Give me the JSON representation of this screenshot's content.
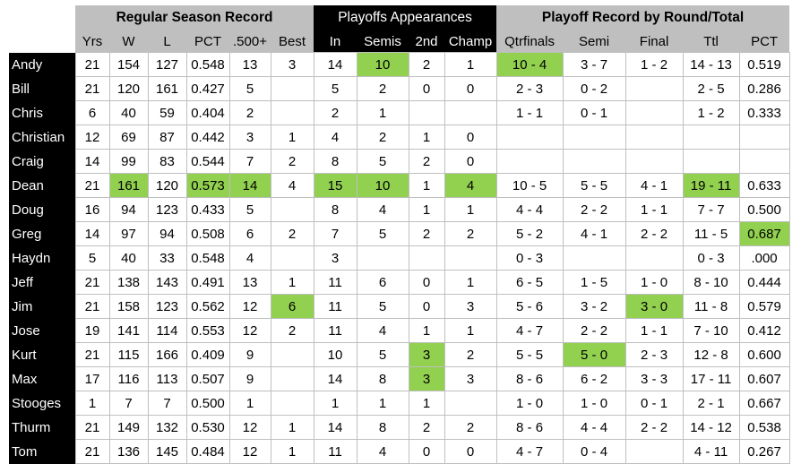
{
  "groups": [
    {
      "label": "Regular Season Record"
    },
    {
      "label": "Playoffs Appearances"
    },
    {
      "label": "Playoff Record by Round/Total"
    }
  ],
  "columns": {
    "season": [
      "Yrs",
      "W",
      "L",
      "PCT",
      ".500+",
      "Best"
    ],
    "appearances": [
      "In",
      "Semis",
      "2nd",
      "Champ"
    ],
    "rounds": [
      "Qtrfinals",
      "Semi",
      "Final",
      "Ttl",
      "PCT"
    ]
  },
  "highlight_color": "#92d050",
  "rows": [
    {
      "name": "Andy",
      "cells": [
        "21",
        "154",
        "127",
        "0.548",
        "13",
        "3",
        "14",
        "10",
        "2",
        "1",
        "10 - 4",
        "3 - 7",
        "1 - 2",
        "14 - 13",
        "0.519"
      ],
      "highlight": [
        7,
        10
      ]
    },
    {
      "name": "Bill",
      "cells": [
        "21",
        "120",
        "161",
        "0.427",
        "5",
        "",
        "5",
        "2",
        "0",
        "0",
        "2 - 3",
        "0 - 2",
        "",
        "2 - 5",
        "0.286"
      ],
      "highlight": []
    },
    {
      "name": "Chris",
      "cells": [
        "6",
        "40",
        "59",
        "0.404",
        "2",
        "",
        "2",
        "1",
        "",
        "",
        "1 - 1",
        "0 - 1",
        "",
        "1 - 2",
        "0.333"
      ],
      "highlight": []
    },
    {
      "name": "Christian",
      "cells": [
        "12",
        "69",
        "87",
        "0.442",
        "3",
        "1",
        "4",
        "2",
        "1",
        "0",
        "",
        "",
        "",
        "",
        ""
      ],
      "highlight": []
    },
    {
      "name": "Craig",
      "cells": [
        "14",
        "99",
        "83",
        "0.544",
        "7",
        "2",
        "8",
        "5",
        "2",
        "0",
        "",
        "",
        "",
        "",
        ""
      ],
      "highlight": []
    },
    {
      "name": "Dean",
      "cells": [
        "21",
        "161",
        "120",
        "0.573",
        "14",
        "4",
        "15",
        "10",
        "1",
        "4",
        "10 - 5",
        "5 - 5",
        "4 - 1",
        "19 - 11",
        "0.633"
      ],
      "highlight": [
        1,
        3,
        4,
        6,
        7,
        9,
        13
      ]
    },
    {
      "name": "Doug",
      "cells": [
        "16",
        "94",
        "123",
        "0.433",
        "5",
        "",
        "8",
        "4",
        "1",
        "1",
        "4 - 4",
        "2 - 2",
        "1 - 1",
        "7 - 7",
        "0.500"
      ],
      "highlight": []
    },
    {
      "name": "Greg",
      "cells": [
        "14",
        "97",
        "94",
        "0.508",
        "6",
        "2",
        "7",
        "5",
        "2",
        "2",
        "5 - 2",
        "4 - 1",
        "2 - 2",
        "11 - 5",
        "0.687"
      ],
      "highlight": [
        14
      ]
    },
    {
      "name": "Haydn",
      "cells": [
        "5",
        "40",
        "33",
        "0.548",
        "4",
        "",
        "3",
        "",
        "",
        "",
        "0 - 3",
        "",
        "",
        "0 - 3",
        ".000"
      ],
      "highlight": []
    },
    {
      "name": "Jeff",
      "cells": [
        "21",
        "138",
        "143",
        "0.491",
        "13",
        "1",
        "11",
        "6",
        "0",
        "1",
        "6 - 5",
        "1 - 5",
        "1 - 0",
        "8 - 10",
        "0.444"
      ],
      "highlight": []
    },
    {
      "name": "Jim",
      "cells": [
        "21",
        "158",
        "123",
        "0.562",
        "12",
        "6",
        "11",
        "5",
        "0",
        "3",
        "5 - 6",
        "3 - 2",
        "3 - 0",
        "11 - 8",
        "0.579"
      ],
      "highlight": [
        5,
        12
      ]
    },
    {
      "name": "Jose",
      "cells": [
        "19",
        "141",
        "114",
        "0.553",
        "12",
        "2",
        "11",
        "4",
        "1",
        "1",
        "4 - 7",
        "2 - 2",
        "1 - 1",
        "7 - 10",
        "0.412"
      ],
      "highlight": []
    },
    {
      "name": "Kurt",
      "cells": [
        "21",
        "115",
        "166",
        "0.409",
        "9",
        "",
        "10",
        "5",
        "3",
        "2",
        "5 - 5",
        "5 - 0",
        "2 - 3",
        "12 - 8",
        "0.600"
      ],
      "highlight": [
        8,
        11
      ]
    },
    {
      "name": "Max",
      "cells": [
        "17",
        "116",
        "113",
        "0.507",
        "9",
        "",
        "14",
        "8",
        "3",
        "3",
        "8 - 6",
        "6 - 2",
        "3 - 3",
        "17 - 11",
        "0.607"
      ],
      "highlight": [
        8
      ]
    },
    {
      "name": "Stooges",
      "cells": [
        "1",
        "7",
        "7",
        "0.500",
        "1",
        "",
        "1",
        "1",
        "1",
        "",
        "1 - 0",
        "1 - 0",
        "0 - 1",
        "2 - 1",
        "0.667"
      ],
      "highlight": []
    },
    {
      "name": "Thurm",
      "cells": [
        "21",
        "149",
        "132",
        "0.530",
        "12",
        "1",
        "14",
        "8",
        "2",
        "2",
        "8 - 6",
        "4 - 4",
        "2 - 2",
        "14 - 12",
        "0.538"
      ],
      "highlight": []
    },
    {
      "name": "Tom",
      "cells": [
        "21",
        "136",
        "145",
        "0.484",
        "12",
        "1",
        "11",
        "4",
        "0",
        "0",
        "4 - 7",
        "0 - 4",
        "",
        "4 - 11",
        "0.267"
      ],
      "highlight": []
    }
  ]
}
